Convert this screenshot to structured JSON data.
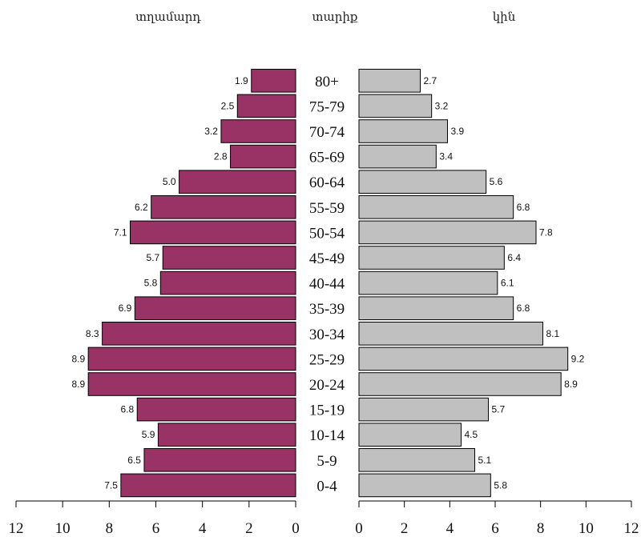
{
  "chart_data": {
    "type": "bar",
    "orientation": "horizontal-population-pyramid",
    "headers": {
      "left": "տղամարդ",
      "center": "տարիք",
      "right": "կին"
    },
    "categories": [
      "80+",
      "75-79",
      "70-74",
      "65-69",
      "60-64",
      "55-59",
      "50-54",
      "45-49",
      "40-44",
      "35-39",
      "30-34",
      "25-29",
      "20-24",
      "15-19",
      "10-14",
      "5-9",
      "0-4"
    ],
    "series": [
      {
        "name": "տղամարդ",
        "color": "#993366",
        "values": [
          1.9,
          2.5,
          3.2,
          2.8,
          5.0,
          6.2,
          7.1,
          5.7,
          5.8,
          6.9,
          8.3,
          8.9,
          8.9,
          6.8,
          5.9,
          6.5,
          7.5
        ],
        "labels": [
          "1.9",
          "2.5",
          "3.2",
          "2.8",
          "5.0",
          "6.2",
          "7.1",
          "5.7",
          "5.8",
          "6.9",
          "8.3",
          "8.9",
          "8.9",
          "6.8",
          "5.9",
          "6.5",
          "7.5"
        ]
      },
      {
        "name": "կին",
        "color": "#c0c0c0",
        "values": [
          2.7,
          3.2,
          3.9,
          3.4,
          5.6,
          6.8,
          7.8,
          6.4,
          6.1,
          6.8,
          8.1,
          9.2,
          8.9,
          5.7,
          4.5,
          5.1,
          5.8
        ],
        "labels": [
          "2.7",
          "3.2",
          "3.9",
          "3.4",
          "5.6",
          "6.8",
          "7.8",
          "6.4",
          "6.1",
          "6.8",
          "8.1",
          "9.2",
          "8.9",
          "5.7",
          "4.5",
          "5.1",
          "5.8"
        ]
      }
    ],
    "xlim": [
      0,
      12
    ],
    "xticks": [
      "0",
      "2",
      "4",
      "6",
      "8",
      "10",
      "12"
    ],
    "left_xticks": [
      "12",
      "10",
      "8",
      "6",
      "4",
      "2",
      "0"
    ],
    "grid": false,
    "legend": "none"
  }
}
